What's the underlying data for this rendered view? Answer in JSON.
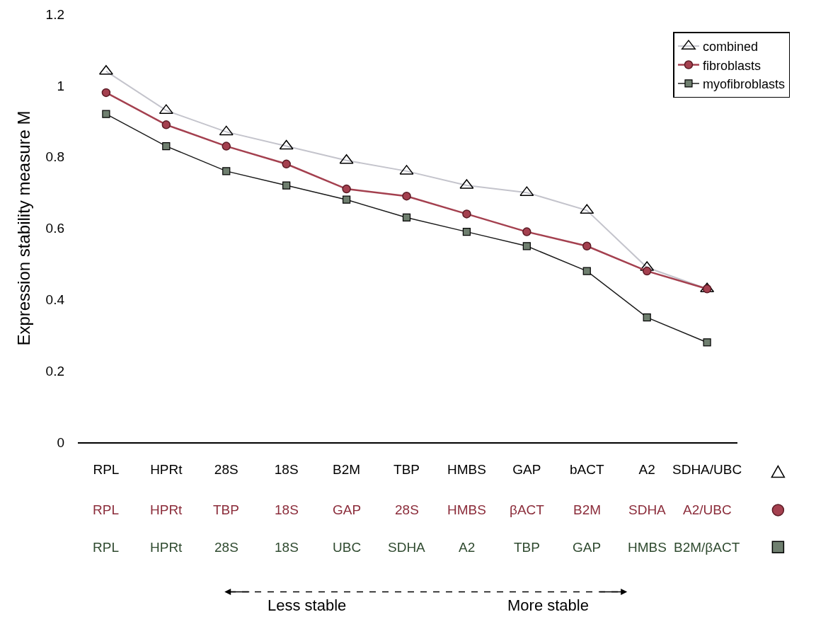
{
  "chart_data": {
    "type": "line",
    "ylabel": "Expression stability measure M",
    "categories": [
      "RPL",
      "HPRt",
      "28S",
      "18S",
      "B2M",
      "TBP",
      "HMBS",
      "GAP",
      "bACT",
      "A2",
      "SDHA/UBC"
    ],
    "series": [
      {
        "name": "combined",
        "color": "#c4c4cc",
        "marker": "triangle",
        "values": [
          1.04,
          0.93,
          0.87,
          0.83,
          0.79,
          0.76,
          0.72,
          0.7,
          0.65,
          0.49,
          0.43
        ]
      },
      {
        "name": "fibroblasts",
        "color": "#a4404f",
        "marker": "circle",
        "values": [
          0.98,
          0.89,
          0.83,
          0.78,
          0.71,
          0.69,
          0.64,
          0.59,
          0.55,
          0.48,
          0.43
        ]
      },
      {
        "name": "myofibroblasts",
        "color": "#6f7f6f",
        "marker": "square",
        "values": [
          0.92,
          0.83,
          0.76,
          0.72,
          0.68,
          0.63,
          0.59,
          0.55,
          0.48,
          0.35,
          0.28
        ]
      }
    ],
    "annotations": [
      "RPL",
      "HPRt",
      "TBP",
      "18S",
      "GAP",
      "28S",
      "HMBS",
      "βACT",
      "B2M",
      "SDHA",
      "A2/UBC",
      "RPL",
      "HPRt",
      "28S",
      "18S",
      "UBC",
      "SDHA",
      "A2",
      "TBP",
      "GAP",
      "HMBS",
      "B2M/βACT",
      "Less stable",
      "More stable"
    ],
    "ylim": [
      0,
      1.2
    ],
    "yticks": [
      0,
      0.2,
      0.4,
      0.6,
      0.8,
      1,
      1.2
    ],
    "legend": "top right",
    "line_style": "solid"
  }
}
